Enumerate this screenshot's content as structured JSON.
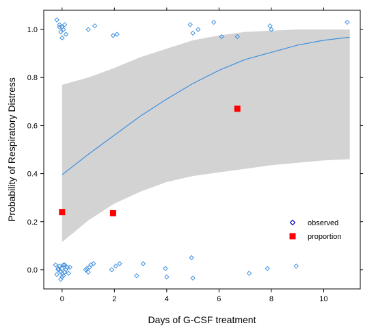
{
  "chart_data": {
    "type": "scatter",
    "xlabel": "Days of G-CSF treatment",
    "ylabel": "Probability of Respiratory Distress",
    "xlim": [
      -0.7,
      11.4
    ],
    "ylim": [
      -0.08,
      1.08
    ],
    "x_ticks": [
      0,
      2,
      4,
      6,
      8,
      10
    ],
    "y_ticks": [
      0.0,
      0.2,
      0.4,
      0.6,
      0.8,
      1.0
    ],
    "x_tick_labels": [
      "0",
      "2",
      "4",
      "6",
      "8",
      "10"
    ],
    "y_tick_labels": [
      "0.0",
      "0.2",
      "0.4",
      "0.6",
      "0.8",
      "1.0"
    ],
    "grid": false,
    "legend_position": "bottom-right",
    "colors": {
      "observed": "#3d8fe0",
      "fit": "#3d8fe0",
      "band": "#d3d3d3",
      "proportion": "#ff0000",
      "legend_observed": "#0000cc"
    },
    "legend": [
      {
        "label": "observed",
        "marker": "diamond-open"
      },
      {
        "label": "proportion",
        "marker": "square-filled"
      }
    ],
    "fit_line": {
      "x": [
        0,
        1,
        2,
        3,
        4,
        5,
        6,
        7,
        8,
        9,
        10,
        11
      ],
      "y": [
        0.395,
        0.48,
        0.56,
        0.64,
        0.71,
        0.775,
        0.83,
        0.875,
        0.905,
        0.935,
        0.955,
        0.968
      ]
    },
    "confidence_band": {
      "x": [
        0,
        1,
        2,
        3,
        4,
        5,
        6,
        7,
        8,
        9,
        10,
        11
      ],
      "lower": [
        0.115,
        0.205,
        0.275,
        0.325,
        0.365,
        0.39,
        0.405,
        0.42,
        0.435,
        0.445,
        0.455,
        0.46
      ],
      "upper": [
        0.77,
        0.8,
        0.84,
        0.885,
        0.92,
        0.955,
        0.975,
        0.99,
        0.995,
        1.0,
        1.0,
        1.0
      ]
    },
    "proportion": {
      "x": [
        0,
        1.95,
        6.7
      ],
      "y": [
        0.24,
        0.235,
        0.67
      ]
    },
    "observed": {
      "x": [
        -0.2,
        -0.1,
        0.0,
        0.1,
        -0.05,
        0.05,
        -0.1,
        0.15,
        0.0,
        1.0,
        1.25,
        1.95,
        2.1,
        4.9,
        5.0,
        5.2,
        5.8,
        6.1,
        6.7,
        7.95,
        8.0,
        10.9,
        -0.25,
        -0.15,
        -0.05,
        0.05,
        0.15,
        0.25,
        -0.2,
        0.0,
        0.2,
        -0.1,
        0.1,
        0.0,
        -0.05,
        0.05,
        0.1,
        0.2,
        -0.15,
        0.0,
        0.3,
        0.95,
        1.0,
        1.1,
        0.9,
        1.05,
        1.2,
        1.9,
        2.05,
        2.2,
        2.85,
        3.1,
        3.95,
        4.0,
        4.95,
        5.0,
        7.15,
        7.85,
        8.95
      ],
      "y": [
        1.04,
        1.02,
        1.01,
        1.02,
        0.99,
        1.0,
        1.01,
        0.98,
        0.965,
        1.0,
        1.015,
        0.975,
        0.98,
        1.02,
        0.985,
        1.0,
        1.03,
        0.97,
        0.97,
        1.015,
        1.0,
        1.03,
        0.02,
        0.0,
        -0.01,
        0.02,
        0.0,
        -0.015,
        -0.02,
        -0.03,
        0.01,
        0.015,
        -0.01,
        0.005,
        -0.04,
        -0.025,
        0.02,
        0.01,
        0.005,
        -0.015,
        0.01,
        0.005,
        -0.01,
        0.02,
        0.0,
        0.01,
        0.025,
        0.0,
        0.015,
        0.025,
        -0.025,
        0.025,
        0.005,
        -0.03,
        0.05,
        -0.035,
        -0.015,
        0.005,
        0.015
      ]
    }
  }
}
